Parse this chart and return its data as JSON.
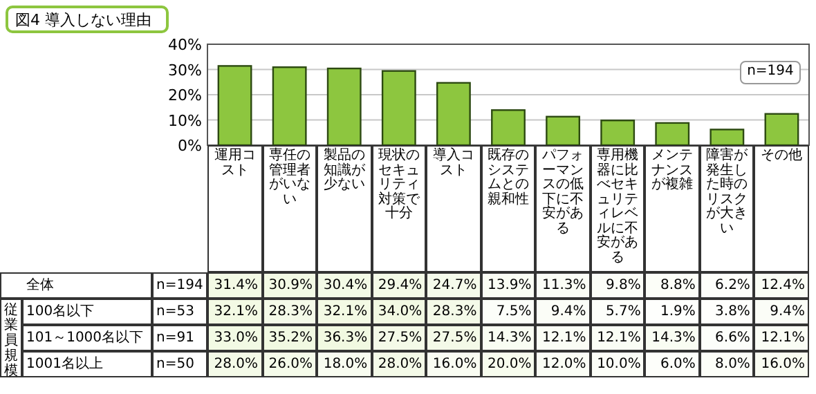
{
  "chart_data": [
    {
      "type": "bar",
      "title": "図4 導入しない理由",
      "categories": [
        null,
        null,
        null,
        null,
        null,
        null,
        null,
        null,
        null,
        null,
        null
      ],
      "series": [
        {
          "color": "#8dc63f",
          "values": [
            31.4,
            30.9,
            30.4,
            29.4,
            24.7,
            13.9,
            11.3,
            9.8,
            8.8,
            6.2,
            12.4
          ]
        }
      ],
      "ylim": [
        0,
        40
      ],
      "yticks": [
        {
          "value": 0,
          "label": "0%"
        },
        {
          "value": 10,
          "label": "10%"
        },
        {
          "value": 20,
          "label": "20%"
        },
        {
          "value": 30,
          "label": "30%"
        },
        {
          "value": 40,
          "label": "40%"
        }
      ],
      "grid": "y",
      "annotations": [
        "n=194"
      ]
    },
    {
      "type": "heatmap",
      "categories": [
        "運用コスト",
        "専任の管理者がいない",
        "製品の知識が少ない",
        "現状のセキュリティ対策で十分",
        "導入コスト",
        "既存のシステムとの親和性",
        "パフォーマンスの低下に不安がある",
        "専用機器に比べセキュリティレベルに不安がある",
        "メンテナンスが複雑",
        "障害が発生した時のリスクが大きい",
        "その他"
      ],
      "y_categories": [
        "全体",
        "100名以下",
        "101～1000名以下",
        "1001名以上"
      ],
      "y2_categories": [
        "n=194",
        "n=53",
        "n=91",
        "n=50"
      ],
      "cells": [
        [
          31.4,
          30.9,
          30.4,
          29.4,
          24.7,
          13.9,
          11.3,
          9.8,
          8.8,
          6.2,
          12.4
        ],
        [
          32.1,
          28.3,
          32.1,
          34.0,
          28.3,
          7.5,
          9.4,
          5.7,
          1.9,
          3.8,
          9.4
        ],
        [
          33.0,
          35.2,
          36.3,
          27.5,
          27.5,
          14.3,
          12.1,
          12.1,
          14.3,
          6.6,
          12.1
        ],
        [
          28.0,
          26.0,
          18.0,
          28.0,
          16.0,
          20.0,
          12.0,
          10.0,
          6.0,
          8.0,
          16.0
        ]
      ],
      "cell_labels": [
        [
          "31.4%",
          "30.9%",
          "30.4%",
          "29.4%",
          "24.7%",
          "13.9%",
          "11.3%",
          "9.8%",
          "8.8%",
          "6.2%",
          "12.4%"
        ],
        [
          "32.1%",
          "28.3%",
          "32.1%",
          "34.0%",
          "28.3%",
          "7.5%",
          "9.4%",
          "5.7%",
          "1.9%",
          "3.8%",
          "9.4%"
        ],
        [
          "33.0%",
          "35.2%",
          "36.3%",
          "27.5%",
          "27.5%",
          "14.3%",
          "12.1%",
          "12.1%",
          "14.3%",
          "6.6%",
          "12.1%"
        ],
        [
          "28.0%",
          "26.0%",
          "18.0%",
          "28.0%",
          "16.0%",
          "20.0%",
          "12.0%",
          "10.0%",
          "6.0%",
          "8.0%",
          "16.0%"
        ]
      ],
      "annotations": [
        "従業員規模"
      ]
    }
  ]
}
